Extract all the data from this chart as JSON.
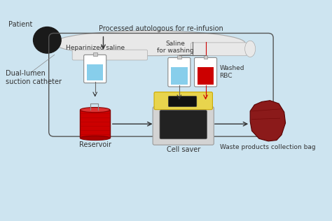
{
  "background_color": "#cde4f0",
  "labels": {
    "patient": "Patient",
    "dual_lumen": "Dual-lumen\nsuction catheter",
    "heparinized": "Heparinized saline",
    "saline_washing": "Saline\nfor washing",
    "washed_rbc": "Washed\nRBC",
    "reservoir": "Reservoir",
    "cell_saver": "Cell saver",
    "waste_bag": "Waste products collection bag",
    "processed": "Processed autologous for re-infusion"
  },
  "colors": {
    "patient_body": "#e8e8e8",
    "patient_head": "#1a1a1a",
    "iv_bag_blue": "#87ceeb",
    "iv_bag_red": "#cc0000",
    "reservoir_red": "#cc0000",
    "cell_saver_body": "#d3d3d3",
    "cell_saver_top": "#e8d44d",
    "cell_saver_screen": "#222222",
    "waste_bag": "#8b1a1a",
    "arrow_color": "#333333",
    "text_color": "#333333",
    "box_line": "#555555",
    "tube_color": "#666666"
  },
  "font_size": 7,
  "figsize": [
    4.74,
    3.16
  ],
  "dpi": 100
}
